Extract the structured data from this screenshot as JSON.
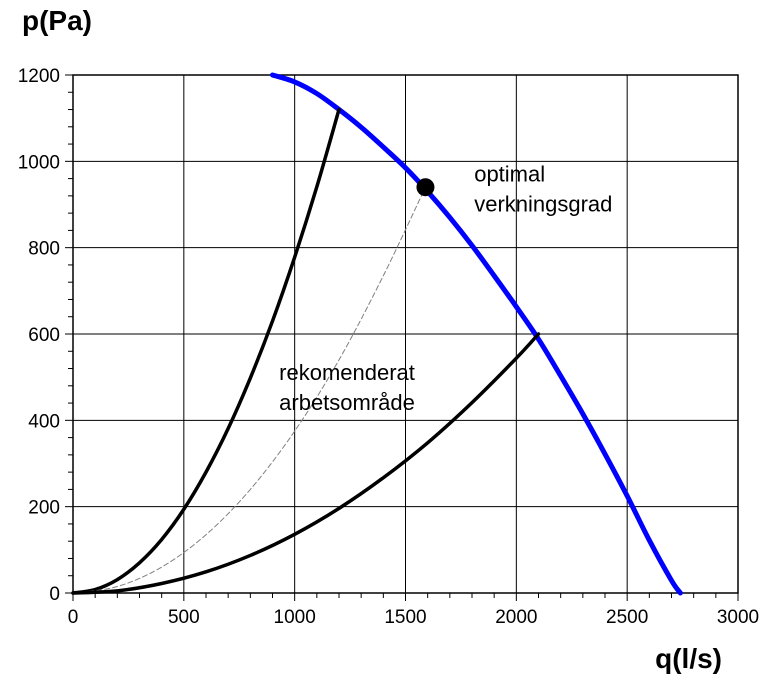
{
  "chart_data": {
    "type": "line",
    "title": "",
    "xlabel": "q(l/s)",
    "ylabel": "p(Pa)",
    "xlim": [
      0,
      3000
    ],
    "ylim": [
      0,
      1200
    ],
    "x_ticks": [
      0,
      500,
      1000,
      1500,
      2000,
      2500,
      3000
    ],
    "y_ticks": [
      0,
      200,
      400,
      600,
      800,
      1000,
      1200
    ],
    "x_tick_labels": [
      "0",
      "500",
      "1000",
      "1500",
      "2000",
      "2500",
      "3000"
    ],
    "y_tick_labels": [
      "0",
      "200",
      "400",
      "600",
      "800",
      "1000",
      "1200"
    ],
    "grid": true,
    "legend": "none",
    "series": [
      {
        "style": "solid",
        "color": "#0000ff",
        "x": [
          900,
          1000,
          1100,
          1200,
          1300,
          1400,
          1500,
          1600,
          1700,
          1800,
          1900,
          2000,
          2100,
          2200,
          2300,
          2400,
          2500,
          2600,
          2700,
          2740
        ],
        "y": [
          1200,
          1184,
          1157,
          1120,
          1079,
          1033,
          985,
          930,
          870,
          805,
          735,
          663,
          588,
          503,
          415,
          322,
          225,
          122,
          29,
          0
        ]
      },
      {
        "style": "solid",
        "color": "#000000",
        "x": [
          0,
          100,
          200,
          300,
          400,
          500,
          600,
          700,
          800,
          900,
          1000,
          1100,
          1200
        ],
        "y": [
          0,
          8,
          31,
          70,
          124,
          194,
          280,
          381,
          498,
          630,
          778,
          941,
          1120
        ]
      },
      {
        "style": "dashed",
        "color": "#808080",
        "x": [
          0,
          200,
          400,
          600,
          800,
          1000,
          1200,
          1400,
          1590
        ],
        "y": [
          0,
          15,
          60,
          135,
          240,
          375,
          540,
          735,
          940
        ]
      },
      {
        "style": "solid",
        "color": "#000000",
        "x": [
          0,
          200,
          400,
          600,
          800,
          1000,
          1200,
          1400,
          1600,
          1800,
          2000,
          2100
        ],
        "y": [
          0,
          5,
          22,
          49,
          87,
          136,
          196,
          267,
          348,
          441,
          544,
          600
        ]
      }
    ],
    "markers": [
      {
        "x": 1590,
        "y": 940,
        "color": "#000000"
      }
    ],
    "annotations": [
      {
        "lines": [
          "optimal",
          "verkningsgrad"
        ],
        "x": 1810,
        "y": 1000
      },
      {
        "lines": [
          "rekomenderat",
          "arbetsområde"
        ],
        "x": 930,
        "y": 540
      }
    ]
  }
}
